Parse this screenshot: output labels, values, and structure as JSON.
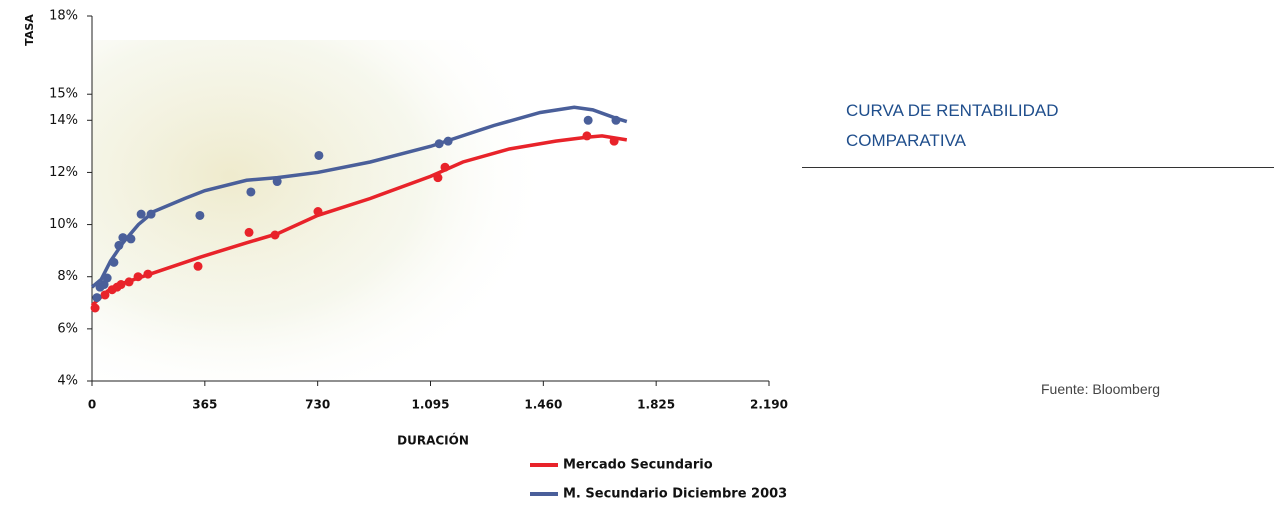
{
  "chart_data": {
    "type": "scatter",
    "title": "CURVA DE RENTABILIDAD COMPARATIVA",
    "source": "Fuente: Bloomberg",
    "xlabel": "DURACIÓN",
    "ylabel": "TASA",
    "xlim": [
      0,
      2190
    ],
    "xticks": [
      0,
      365,
      730,
      {
        "value": 1095,
        "label": "1.095"
      },
      {
        "value": 1460,
        "label": "1.460"
      },
      {
        "value": 1825,
        "label": "1.825"
      },
      {
        "value": 2190,
        "label": "2.190"
      }
    ],
    "ylim": [
      4,
      18
    ],
    "yticks": [
      {
        "value": 4,
        "label": "4%"
      },
      {
        "value": 6,
        "label": "6%"
      },
      {
        "value": 8,
        "label": "8%"
      },
      {
        "value": 10,
        "label": "10%"
      },
      {
        "value": 12,
        "label": "12%"
      },
      {
        "value": 14,
        "label": "14%"
      },
      {
        "value": 15,
        "label": "15%"
      },
      {
        "value": 18,
        "label": "18%"
      }
    ],
    "series": [
      {
        "name": "Mercado Secundario",
        "color": "#e8232a",
        "x": [
          10,
          42,
          65,
          81,
          94,
          120,
          149,
          181,
          343,
          508,
          592,
          731,
          1119,
          1142,
          1601,
          1689
        ],
        "values": [
          6.8,
          7.3,
          7.5,
          7.6,
          7.7,
          7.8,
          8.0,
          8.1,
          8.4,
          9.7,
          9.6,
          10.5,
          11.8,
          12.2,
          13.4,
          13.2
        ],
        "curve_x": [
          0,
          50,
          100,
          200,
          350,
          500,
          600,
          730,
          900,
          1095,
          1200,
          1350,
          1500,
          1600,
          1650,
          1730
        ],
        "curve_values": [
          6.9,
          7.45,
          7.75,
          8.15,
          8.75,
          9.3,
          9.65,
          10.35,
          11.0,
          11.85,
          12.4,
          12.9,
          13.2,
          13.35,
          13.4,
          13.25
        ]
      },
      {
        "name": "M. Secundario Diciembre 2003",
        "color": "#4a5f9a",
        "x": [
          16,
          26,
          39,
          49,
          71,
          87,
          100,
          126,
          159,
          191,
          349,
          514,
          599,
          734,
          1123,
          1152,
          1605,
          1695
        ],
        "values": [
          7.2,
          7.6,
          7.7,
          7.95,
          8.55,
          9.2,
          9.5,
          9.45,
          10.4,
          10.4,
          10.35,
          11.25,
          11.65,
          12.65,
          13.1,
          13.2,
          14.0,
          14.0
        ],
        "curve_x": [
          0,
          30,
          60,
          100,
          150,
          200,
          300,
          365,
          500,
          600,
          730,
          900,
          1095,
          1300,
          1450,
          1560,
          1620,
          1690,
          1730
        ],
        "curve_values": [
          7.6,
          7.9,
          8.6,
          9.3,
          10.0,
          10.5,
          11.0,
          11.3,
          11.7,
          11.8,
          12.0,
          12.4,
          13.0,
          13.8,
          14.3,
          14.5,
          14.4,
          14.1,
          13.95
        ]
      }
    ]
  }
}
